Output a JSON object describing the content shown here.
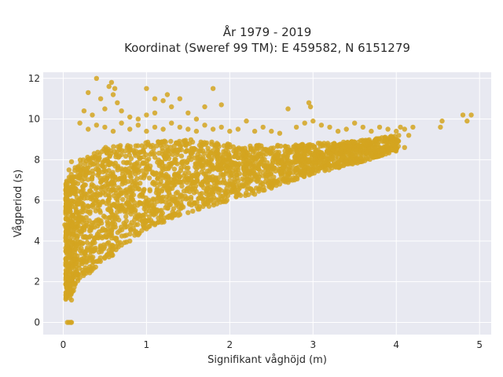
{
  "chart_data": {
    "type": "scatter",
    "title_line1": "År 1979 - 2019",
    "title_line2": "Koordinat (Sweref 99 TM): E 459582, N 6151279",
    "xlabel": "Signifikant våghöjd (m)",
    "ylabel": "Vågperiod (s)",
    "xlim": [
      -0.24,
      5.14
    ],
    "ylim": [
      -0.6,
      12.3
    ],
    "xticks": [
      0,
      1,
      2,
      3,
      4,
      5
    ],
    "xtick_labels": [
      "0",
      "1",
      "2",
      "3",
      "4",
      "5"
    ],
    "yticks": [
      0,
      2,
      4,
      6,
      8,
      10,
      12
    ],
    "ytick_labels": [
      "0",
      "2",
      "4",
      "6",
      "8",
      "10",
      "12"
    ],
    "grid": true,
    "legend": "none",
    "colors": {
      "marker": "#D4A520",
      "plot_background": "#E8E9F1",
      "grid": "#ffffff"
    },
    "series": [
      {
        "cloud_envelope": {
          "upper": [
            [
              0.05,
              7.0
            ],
            [
              0.2,
              8.0
            ],
            [
              0.5,
              8.6
            ],
            [
              1.0,
              8.9
            ],
            [
              1.5,
              9.0
            ],
            [
              2.0,
              8.8
            ],
            [
              2.5,
              8.7
            ],
            [
              3.0,
              8.8
            ],
            [
              3.5,
              8.9
            ],
            [
              4.0,
              9.2
            ]
          ],
          "lower": [
            [
              0.05,
              1.1
            ],
            [
              0.2,
              2.0
            ],
            [
              0.5,
              3.0
            ],
            [
              1.0,
              4.6
            ],
            [
              1.5,
              5.4
            ],
            [
              2.0,
              6.0
            ],
            [
              2.5,
              6.6
            ],
            [
              3.0,
              7.3
            ],
            [
              3.5,
              7.8
            ],
            [
              4.0,
              8.4
            ]
          ]
        },
        "points": [
          [
            0.05,
            0.0
          ],
          [
            0.07,
            0.0
          ],
          [
            0.09,
            0.0
          ],
          [
            0.1,
            0.0
          ],
          [
            0.06,
            1.5
          ],
          [
            0.08,
            1.2
          ],
          [
            0.1,
            1.1
          ],
          [
            0.02,
            4.8
          ],
          [
            0.03,
            3.5
          ],
          [
            0.04,
            2.5
          ],
          [
            0.03,
            5.5
          ],
          [
            0.05,
            6.8
          ],
          [
            0.07,
            7.5
          ],
          [
            0.1,
            7.9
          ],
          [
            0.3,
            11.3
          ],
          [
            0.4,
            12.0
          ],
          [
            0.45,
            11.0
          ],
          [
            0.55,
            11.6
          ],
          [
            0.6,
            11.2
          ],
          [
            0.65,
            10.8
          ],
          [
            0.58,
            11.8
          ],
          [
            0.62,
            11.5
          ],
          [
            0.25,
            10.4
          ],
          [
            0.35,
            10.2
          ],
          [
            0.5,
            10.5
          ],
          [
            0.7,
            10.4
          ],
          [
            0.8,
            10.1
          ],
          [
            0.9,
            10.0
          ],
          [
            1.0,
            10.2
          ],
          [
            1.1,
            10.3
          ],
          [
            1.2,
            10.9
          ],
          [
            1.3,
            10.6
          ],
          [
            1.0,
            11.5
          ],
          [
            1.1,
            11.0
          ],
          [
            1.25,
            11.2
          ],
          [
            1.4,
            11.0
          ],
          [
            1.5,
            10.3
          ],
          [
            1.6,
            10.0
          ],
          [
            1.7,
            10.6
          ],
          [
            1.8,
            11.5
          ],
          [
            1.9,
            10.7
          ],
          [
            0.2,
            9.8
          ],
          [
            0.3,
            9.5
          ],
          [
            0.4,
            9.7
          ],
          [
            0.5,
            9.6
          ],
          [
            0.6,
            9.4
          ],
          [
            0.7,
            9.8
          ],
          [
            0.8,
            9.5
          ],
          [
            0.9,
            9.7
          ],
          [
            1.0,
            9.4
          ],
          [
            1.1,
            9.6
          ],
          [
            1.2,
            9.5
          ],
          [
            1.3,
            9.8
          ],
          [
            1.4,
            9.6
          ],
          [
            1.5,
            9.5
          ],
          [
            1.6,
            9.4
          ],
          [
            1.7,
            9.7
          ],
          [
            1.8,
            9.5
          ],
          [
            1.9,
            9.6
          ],
          [
            2.0,
            9.4
          ],
          [
            2.1,
            9.5
          ],
          [
            2.2,
            9.9
          ],
          [
            2.3,
            9.4
          ],
          [
            2.4,
            9.6
          ],
          [
            2.5,
            9.4
          ],
          [
            2.6,
            9.3
          ],
          [
            2.7,
            10.5
          ],
          [
            2.8,
            9.6
          ],
          [
            2.9,
            9.8
          ],
          [
            2.95,
            10.8
          ],
          [
            2.97,
            10.6
          ],
          [
            3.0,
            9.9
          ],
          [
            3.1,
            9.7
          ],
          [
            3.2,
            9.6
          ],
          [
            3.3,
            9.4
          ],
          [
            3.4,
            9.5
          ],
          [
            3.5,
            9.8
          ],
          [
            3.6,
            9.6
          ],
          [
            3.7,
            9.4
          ],
          [
            3.8,
            9.6
          ],
          [
            3.9,
            9.5
          ],
          [
            4.0,
            9.4
          ],
          [
            4.05,
            9.6
          ],
          [
            4.1,
            9.5
          ],
          [
            4.15,
            9.2
          ],
          [
            4.2,
            9.6
          ],
          [
            4.55,
            9.9
          ],
          [
            4.53,
            9.6
          ],
          [
            4.8,
            10.2
          ],
          [
            4.85,
            9.9
          ],
          [
            4.9,
            10.2
          ],
          [
            3.4,
            7.9
          ],
          [
            3.5,
            8.0
          ],
          [
            3.6,
            8.1
          ],
          [
            3.7,
            8.3
          ],
          [
            3.8,
            8.2
          ],
          [
            3.9,
            8.6
          ],
          [
            4.0,
            8.5
          ],
          [
            4.1,
            8.6
          ],
          [
            2.9,
            7.4
          ],
          [
            3.0,
            7.5
          ],
          [
            3.1,
            7.6
          ],
          [
            2.7,
            7.0
          ],
          [
            2.8,
            7.1
          ],
          [
            2.5,
            6.6
          ],
          [
            2.6,
            6.8
          ],
          [
            2.3,
            6.3
          ],
          [
            2.4,
            6.5
          ],
          [
            0.1,
            3.0
          ],
          [
            0.15,
            2.4
          ],
          [
            0.2,
            2.2
          ],
          [
            0.25,
            2.4
          ],
          [
            0.3,
            2.6
          ],
          [
            0.35,
            2.8
          ],
          [
            0.4,
            3.0
          ],
          [
            0.5,
            3.2
          ],
          [
            0.6,
            3.6
          ],
          [
            0.7,
            3.8
          ],
          [
            0.8,
            4.0
          ],
          [
            0.9,
            4.3
          ],
          [
            1.0,
            4.6
          ],
          [
            1.1,
            4.8
          ],
          [
            1.2,
            5.0
          ],
          [
            1.3,
            5.2
          ],
          [
            1.4,
            5.3
          ],
          [
            1.5,
            5.4
          ]
        ]
      }
    ]
  }
}
